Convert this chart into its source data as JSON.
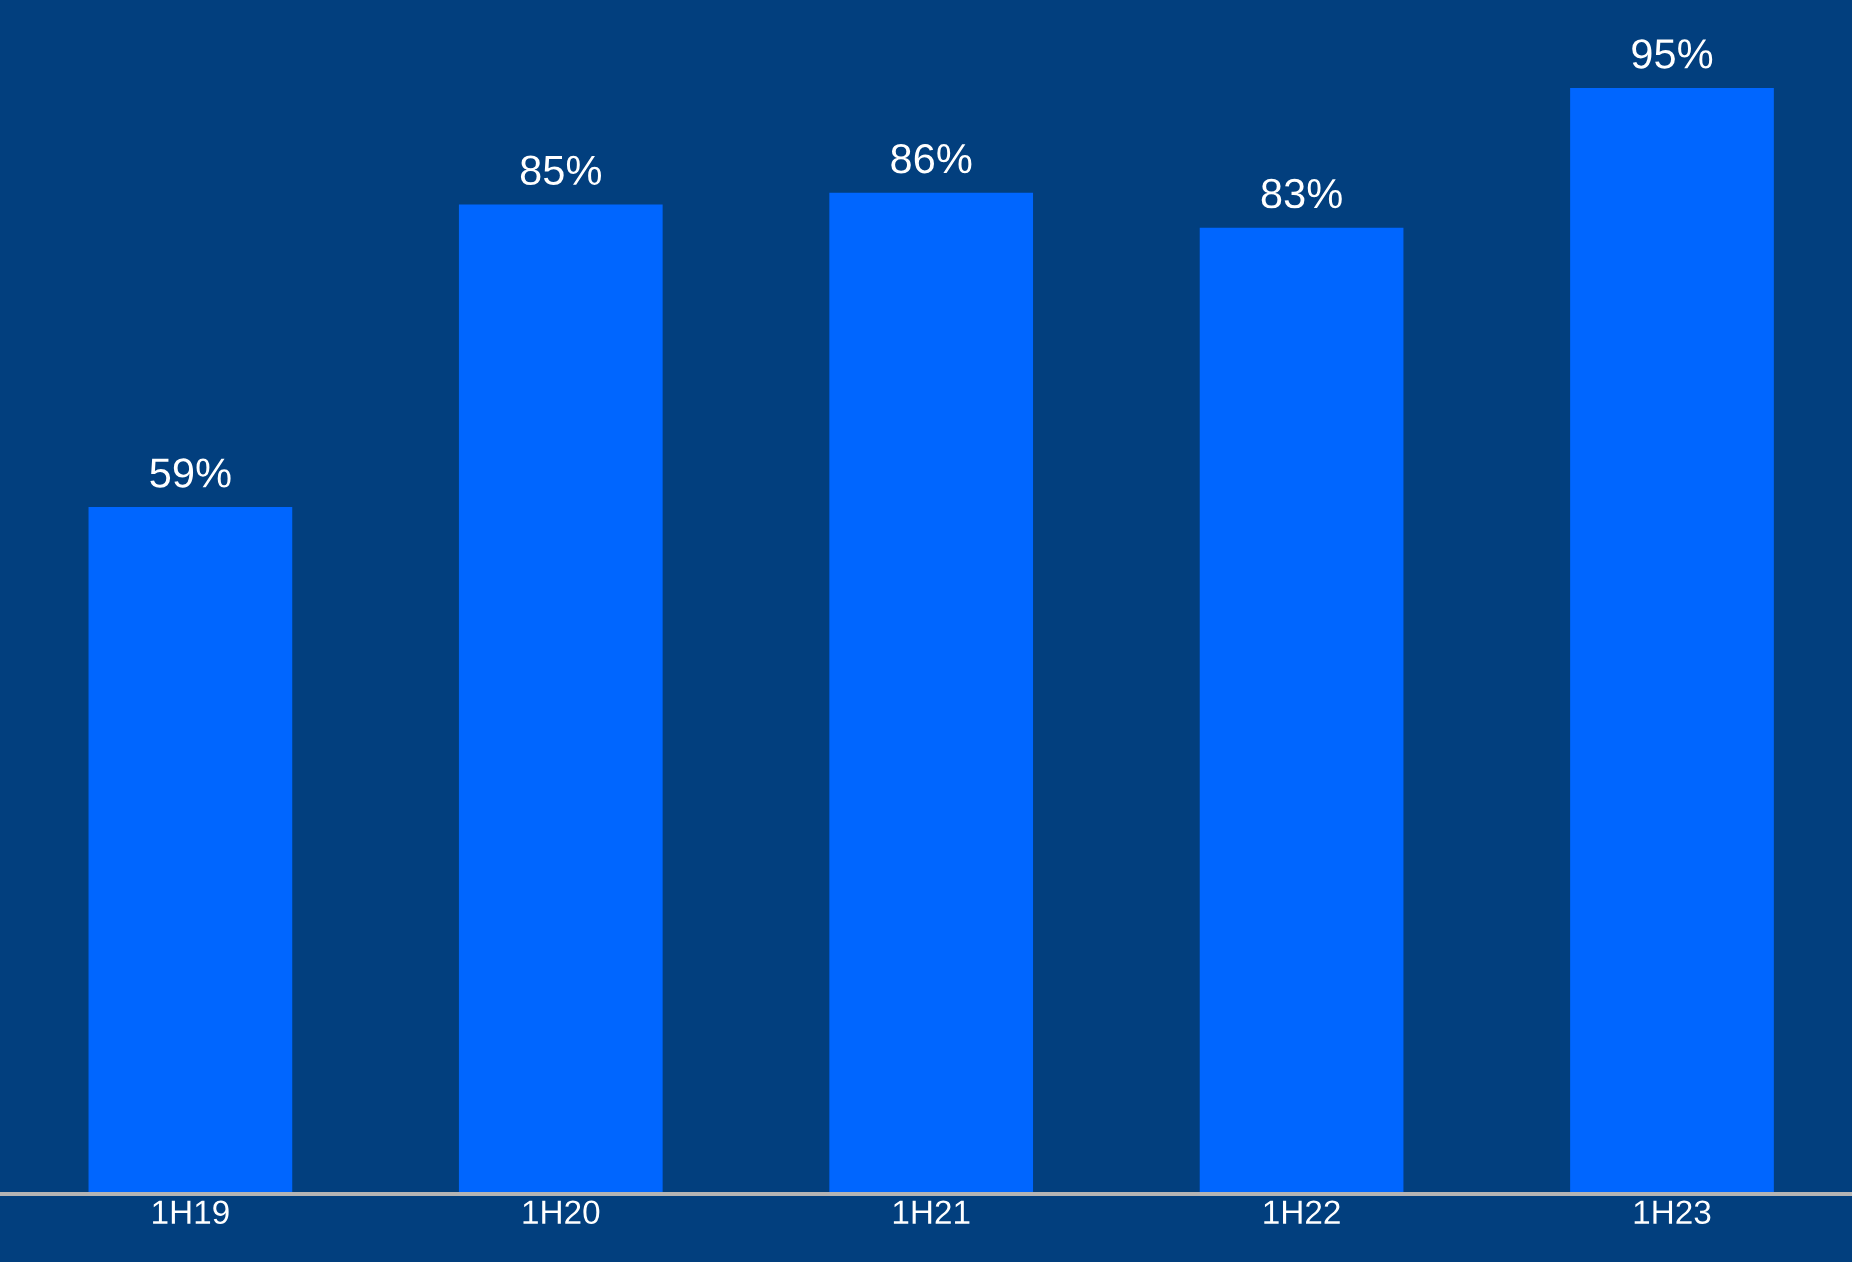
{
  "chart_data": {
    "type": "bar",
    "categories": [
      "1H19",
      "1H20",
      "1H21",
      "1H22",
      "1H23"
    ],
    "values": [
      59,
      85,
      86,
      83,
      95
    ],
    "value_labels": [
      "59%",
      "85%",
      "86%",
      "83%",
      "95%"
    ],
    "color": "#0066ff",
    "grid": false,
    "legend": false,
    "tick_labels": "x"
  }
}
